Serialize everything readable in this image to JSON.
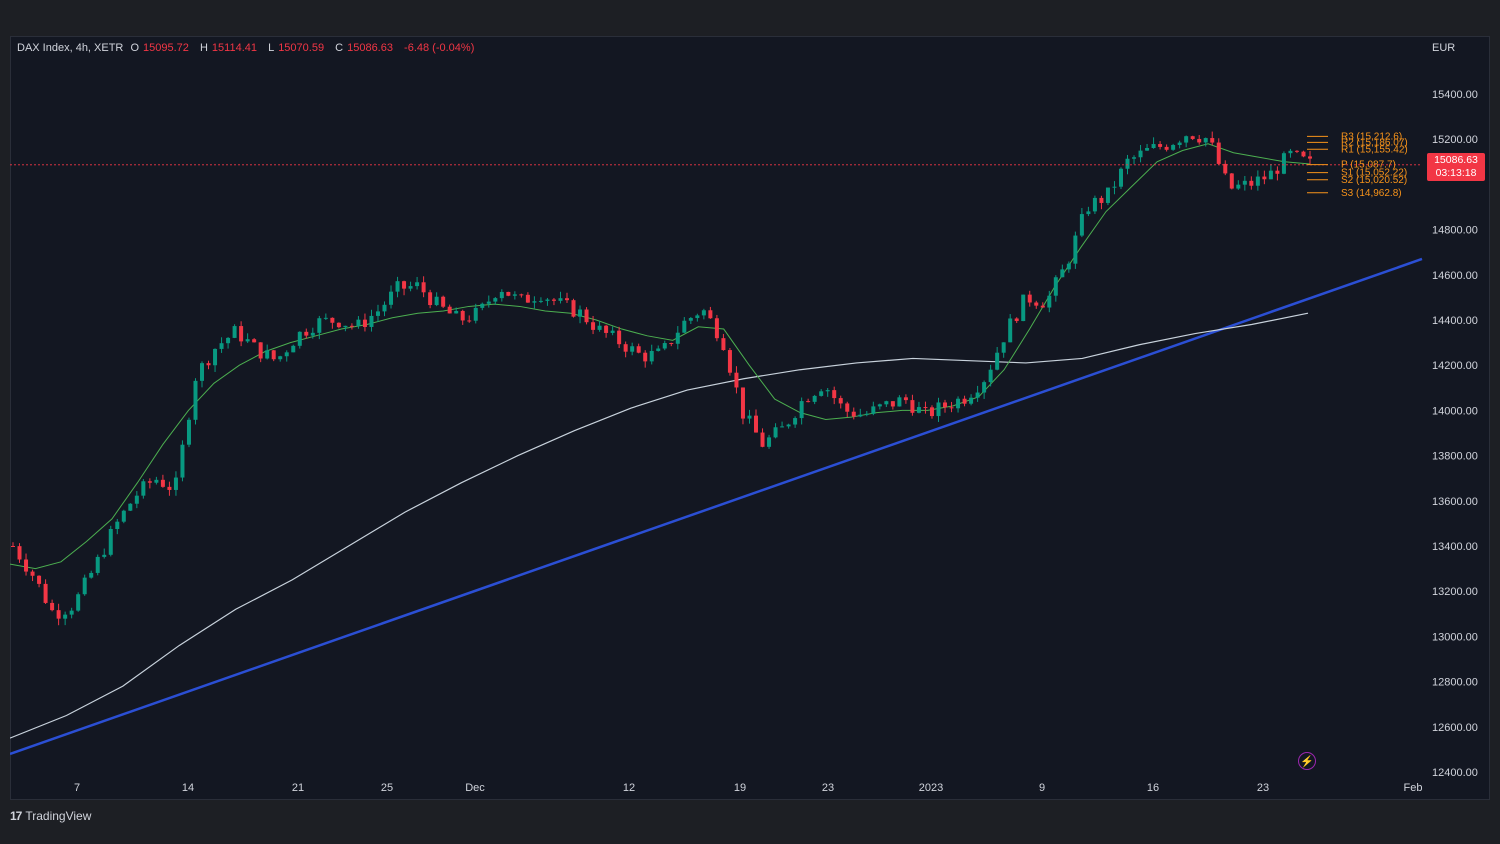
{
  "legend": {
    "symbol": "DAX Index, 4h, XETR",
    "open_label": "O",
    "open": "15095.72",
    "high_label": "H",
    "high": "15114.41",
    "low_label": "L",
    "low": "15070.59",
    "close_label": "C",
    "close": "15086.63",
    "change": "-6.48 (-0.04%)"
  },
  "currency": "EUR",
  "price_tag": {
    "price": "15086.63",
    "countdown": "03:13:18"
  },
  "footer": {
    "logo": "17",
    "brand": "TradingView"
  },
  "colors": {
    "up": "#089981",
    "down": "#f23645",
    "ema": "#4caf50",
    "sma": "#c8d2dc",
    "trendline": "#2b4fd4",
    "pivot": "#f7931a",
    "bg": "#131722"
  },
  "chart_data": {
    "type": "candlestick",
    "ylim": [
      12300,
      15550
    ],
    "yticks": [
      "15400.00",
      "15200.00",
      "14800.00",
      "14600.00",
      "14400.00",
      "14200.00",
      "14000.00",
      "13800.00",
      "13600.00",
      "13400.00",
      "13200.00",
      "13000.00",
      "12800.00",
      "12600.00",
      "12400.00"
    ],
    "xticks": [
      "7",
      "14",
      "21",
      "25",
      "Dec",
      "12",
      "19",
      "23",
      "2023",
      "9",
      "16",
      "23",
      "Feb"
    ],
    "close_anchors": [
      13400,
      13270,
      13100,
      13140,
      13300,
      13480,
      13620,
      13700,
      13650,
      14150,
      14280,
      14350,
      14270,
      14220,
      14330,
      14390,
      14400,
      14370,
      14440,
      14540,
      14550,
      14460,
      14400,
      14430,
      14550,
      14480,
      14520,
      14470,
      14430,
      14350,
      14300,
      14240,
      14250,
      14380,
      14450,
      14320,
      13990,
      13850,
      13920,
      14050,
      14120,
      14000,
      13980,
      14020,
      14050,
      13980,
      14020,
      14060,
      14150,
      14350,
      14500,
      14480,
      14650,
      14900,
      14950,
      15100,
      15150,
      15180,
      15230,
      15200,
      14980,
      15000,
      15040,
      15130,
      15090
    ],
    "ema20": [
      13320,
      13300,
      13330,
      13420,
      13520,
      13680,
      13850,
      14000,
      14120,
      14200,
      14260,
      14300,
      14330,
      14360,
      14380,
      14410,
      14430,
      14440,
      14460,
      14470,
      14460,
      14440,
      14430,
      14400,
      14360,
      14330,
      14310,
      14370,
      14360,
      14200,
      14050,
      13990,
      13960,
      13970,
      13990,
      14000,
      14000,
      14020,
      14060,
      14180,
      14360,
      14550,
      14720,
      14880,
      14990,
      15100,
      15150,
      15180,
      15140,
      15120,
      15100,
      15090
    ],
    "sma100": [
      12550,
      12650,
      12780,
      12960,
      13120,
      13250,
      13400,
      13550,
      13680,
      13800,
      13910,
      14010,
      14090,
      14140,
      14180,
      14210,
      14230,
      14220,
      14210,
      14230,
      14290,
      14340,
      14380,
      14430
    ],
    "trendline": [
      12480,
      14670
    ],
    "pivots": [
      {
        "name": "R3",
        "label": "R3 (15,212.6)",
        "value": 15212.6
      },
      {
        "name": "R2",
        "label": "R2 (15,186.07)",
        "value": 15186.07
      },
      {
        "name": "R1",
        "label": "R1 (15,155.42)",
        "value": 15155.42
      },
      {
        "name": "P",
        "label": "P (15,087.7)",
        "value": 15087.7
      },
      {
        "name": "S1",
        "label": "S1 (15,052.22)",
        "value": 15052.22
      },
      {
        "name": "S2",
        "label": "S2 (15,020.52)",
        "value": 15020.52
      },
      {
        "name": "S3",
        "label": "S3 (14,962.8)",
        "value": 14962.8
      }
    ],
    "last_price": 15086.63
  }
}
